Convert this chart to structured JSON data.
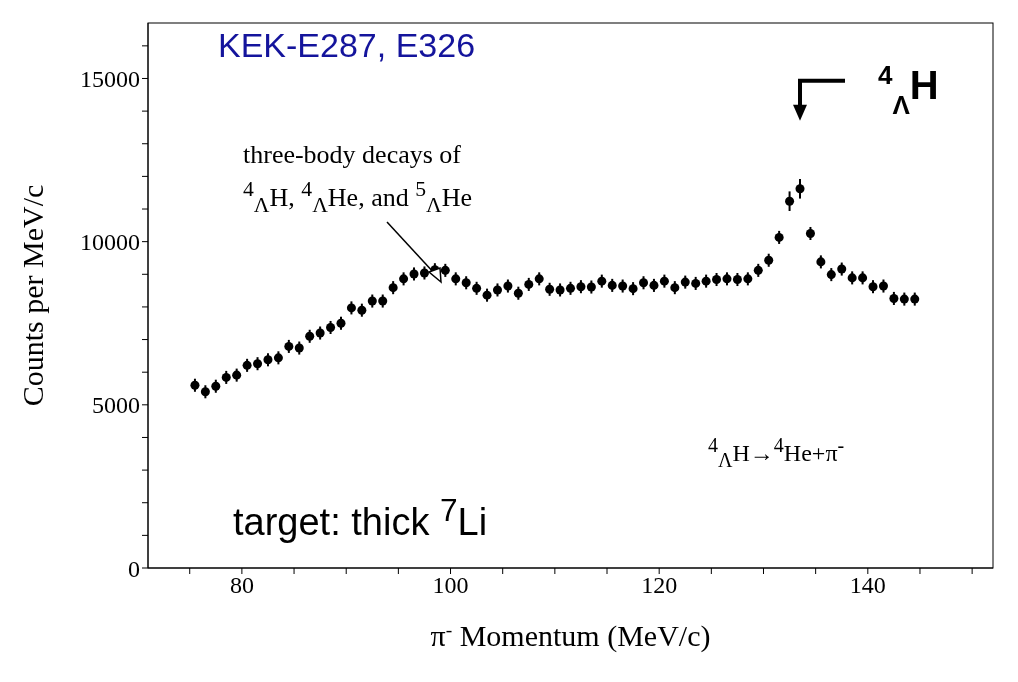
{
  "chart_data": {
    "type": "scatter",
    "xlabel": "π$^{-}$ Momentum (MeV/c)",
    "ylabel": "Counts per MeV/c",
    "annotations": [
      "KEK-E287, E326",
      "three-body decays of $^{4}$$_{Λ}$H, $^{4}$$_{Λ}$He, and $^{5}$$_{Λ}$He",
      {
        "text": "$^{4}$$_{Λ}$H",
        "x": 133.5,
        "y": 11620
      },
      "$^{4}$$_{Λ}$H→$^{4}$He+π$^{-}$",
      "target: thick $^{7}$Li"
    ],
    "x": [
      75.5,
      76.5,
      77.5,
      78.5,
      79.5,
      80.5,
      81.5,
      82.5,
      83.5,
      84.5,
      85.5,
      86.5,
      87.5,
      88.5,
      89.5,
      90.5,
      91.5,
      92.5,
      93.5,
      94.5,
      95.5,
      96.5,
      97.5,
      98.5,
      99.5,
      100.5,
      101.5,
      102.5,
      103.5,
      104.5,
      105.5,
      106.5,
      107.5,
      108.5,
      109.5,
      110.5,
      111.5,
      112.5,
      113.5,
      114.5,
      115.5,
      116.5,
      117.5,
      118.5,
      119.5,
      120.5,
      121.5,
      122.5,
      123.5,
      124.5,
      125.5,
      126.5,
      127.5,
      128.5,
      129.5,
      130.5,
      131.5,
      132.5,
      133.5,
      134.5,
      135.5,
      136.5,
      137.5,
      138.5,
      139.5,
      140.5,
      141.5,
      142.5,
      143.5,
      144.5
    ],
    "series": [
      {
        "color": "#000000",
        "values": [
          5600,
          5400,
          5570,
          5840,
          5910,
          6210,
          6260,
          6380,
          6440,
          6790,
          6740,
          7100,
          7200,
          7370,
          7500,
          7970,
          7900,
          8180,
          8180,
          8590,
          8860,
          9010,
          9040,
          9140,
          9120,
          8860,
          8740,
          8570,
          8360,
          8520,
          8640,
          8420,
          8690,
          8860,
          8540,
          8520,
          8570,
          8620,
          8610,
          8790,
          8660,
          8640,
          8560,
          8740,
          8660,
          8790,
          8590,
          8760,
          8720,
          8790,
          8840,
          8860,
          8840,
          8860,
          9120,
          9430,
          10130,
          11240,
          11620,
          10250,
          9380,
          8990,
          9160,
          8890,
          8890,
          8620,
          8640,
          8260,
          8240,
          8240
        ],
        "errors": [
          200,
          200,
          200,
          200,
          200,
          200,
          200,
          200,
          200,
          200,
          200,
          200,
          200,
          200,
          200,
          200,
          200,
          200,
          200,
          200,
          200,
          200,
          200,
          200,
          200,
          200,
          200,
          200,
          200,
          200,
          200,
          200,
          200,
          200,
          200,
          200,
          200,
          200,
          200,
          200,
          200,
          200,
          200,
          200,
          200,
          200,
          200,
          200,
          200,
          200,
          200,
          200,
          200,
          200,
          200,
          200,
          200,
          300,
          300,
          200,
          200,
          200,
          200,
          200,
          200,
          200,
          200,
          200,
          200,
          200
        ]
      }
    ],
    "marker": "circle",
    "xlim": [
      71,
      152
    ],
    "xticks": [
      {
        "value": 75,
        "label": null
      },
      80,
      {
        "value": 85,
        "label": null
      },
      {
        "value": 90,
        "label": null
      },
      {
        "value": 95,
        "label": null
      },
      100,
      {
        "value": 105,
        "label": null
      },
      {
        "value": 110,
        "label": null
      },
      {
        "value": 115,
        "label": null
      },
      120,
      {
        "value": 125,
        "label": null
      },
      {
        "value": 130,
        "label": null
      },
      {
        "value": 135,
        "label": null
      },
      140,
      {
        "value": 145,
        "label": null
      },
      {
        "value": 150,
        "label": null
      }
    ],
    "ylim": [
      0,
      16700
    ],
    "yticks": [
      0,
      {
        "value": 1000,
        "label": null
      },
      {
        "value": 2000,
        "label": null
      },
      {
        "value": 3000,
        "label": null
      },
      {
        "value": 4000,
        "label": null
      },
      5000,
      {
        "value": 6000,
        "label": null
      },
      {
        "value": 7000,
        "label": null
      },
      {
        "value": 8000,
        "label": null
      },
      {
        "value": 9000,
        "label": null
      },
      10000,
      {
        "value": 11000,
        "label": null
      },
      {
        "value": 12000,
        "label": null
      },
      {
        "value": 13000,
        "label": null
      },
      {
        "value": 14000,
        "label": null
      },
      15000,
      {
        "value": 16000,
        "label": null
      }
    ],
    "grid": false,
    "legend": false
  }
}
